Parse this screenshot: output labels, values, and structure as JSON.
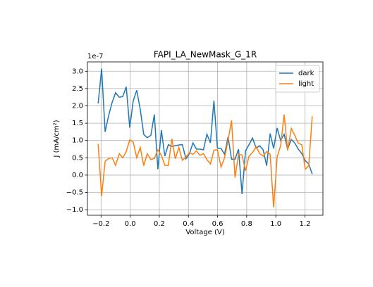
{
  "chart_data": {
    "type": "line",
    "title": "FAPI_LA_NewMask_G_1R",
    "xlabel": "Voltage (V)",
    "ylabel": "J (mA/cm²)",
    "y_offset_label": "1e-7",
    "grid": true,
    "legend": "upper right",
    "x": [
      -0.22,
      -0.196,
      -0.172,
      -0.148,
      -0.124,
      -0.1,
      -0.075,
      -0.051,
      -0.027,
      -0.003,
      0.021,
      0.045,
      0.069,
      0.093,
      0.117,
      0.142,
      0.166,
      0.19,
      0.214,
      0.238,
      0.262,
      0.286,
      0.31,
      0.334,
      0.358,
      0.383,
      0.407,
      0.431,
      0.455,
      0.479,
      0.503,
      0.527,
      0.551,
      0.575,
      0.599,
      0.624,
      0.648,
      0.672,
      0.696,
      0.72,
      0.744,
      0.768,
      0.792,
      0.816,
      0.84,
      0.865,
      0.889,
      0.913,
      0.937,
      0.961,
      0.985,
      1.009,
      1.033,
      1.057,
      1.081,
      1.106,
      1.13,
      1.154,
      1.178,
      1.202,
      1.226,
      1.25
    ],
    "series": [
      {
        "name": "dark",
        "color": "#1f77b4",
        "values": [
          2.07,
          3.07,
          1.25,
          1.72,
          2.1,
          2.38,
          2.25,
          2.27,
          2.55,
          1.37,
          2.15,
          2.45,
          1.9,
          1.18,
          1.08,
          1.15,
          1.75,
          0.17,
          1.3,
          0.55,
          0.88,
          0.83,
          0.85,
          0.87,
          0.88,
          0.47,
          0.62,
          0.93,
          0.75,
          0.75,
          0.73,
          1.18,
          0.93,
          2.15,
          0.78,
          0.77,
          0.6,
          1.1,
          0.46,
          0.46,
          0.75,
          -0.55,
          0.7,
          0.88,
          1.07,
          0.78,
          0.85,
          0.73,
          0.27,
          1.2,
          0.77,
          1.36,
          1.0,
          1.18,
          0.75,
          1.03,
          0.93,
          0.75,
          0.62,
          0.42,
          0.32,
          0.03
        ]
      },
      {
        "name": "light",
        "color": "#ff7f0e",
        "values": [
          0.9,
          -0.6,
          0.4,
          0.48,
          0.5,
          0.28,
          0.62,
          0.5,
          0.68,
          1.02,
          0.95,
          0.5,
          0.8,
          0.27,
          0.62,
          0.45,
          0.48,
          0.73,
          0.57,
          0.28,
          0.28,
          1.05,
          0.47,
          0.8,
          0.43,
          0.52,
          0.65,
          0.6,
          0.7,
          0.57,
          0.62,
          0.45,
          0.32,
          0.72,
          0.73,
          0.23,
          0.5,
          1.0,
          1.58,
          -0.07,
          0.6,
          0.58,
          0.12,
          0.55,
          0.65,
          0.82,
          0.62,
          0.55,
          0.68,
          0.6,
          -0.93,
          0.52,
          0.85,
          1.75,
          0.72,
          1.35,
          1.15,
          0.92,
          0.88,
          0.17,
          0.27,
          1.7
        ]
      }
    ],
    "xlim": [
      -0.2935,
      1.3235
    ],
    "ylim": [
      -1.16,
      3.27
    ],
    "xticks": [
      {
        "value": -0.2,
        "label": "−0.2"
      },
      {
        "value": 0,
        "label": "0.0"
      },
      0.2,
      0.4,
      0.6,
      0.8,
      {
        "value": 1,
        "label": "1.0"
      },
      1.2
    ],
    "yticks": [
      {
        "value": -1,
        "label": "−1.0"
      },
      {
        "value": -0.5,
        "label": "−0.5"
      },
      {
        "value": 0,
        "label": "0.0"
      },
      0.5,
      {
        "value": 1,
        "label": "1.0"
      },
      1.5,
      {
        "value": 2,
        "label": "2.0"
      },
      2.5,
      {
        "value": 3,
        "label": "3.0"
      }
    ]
  }
}
